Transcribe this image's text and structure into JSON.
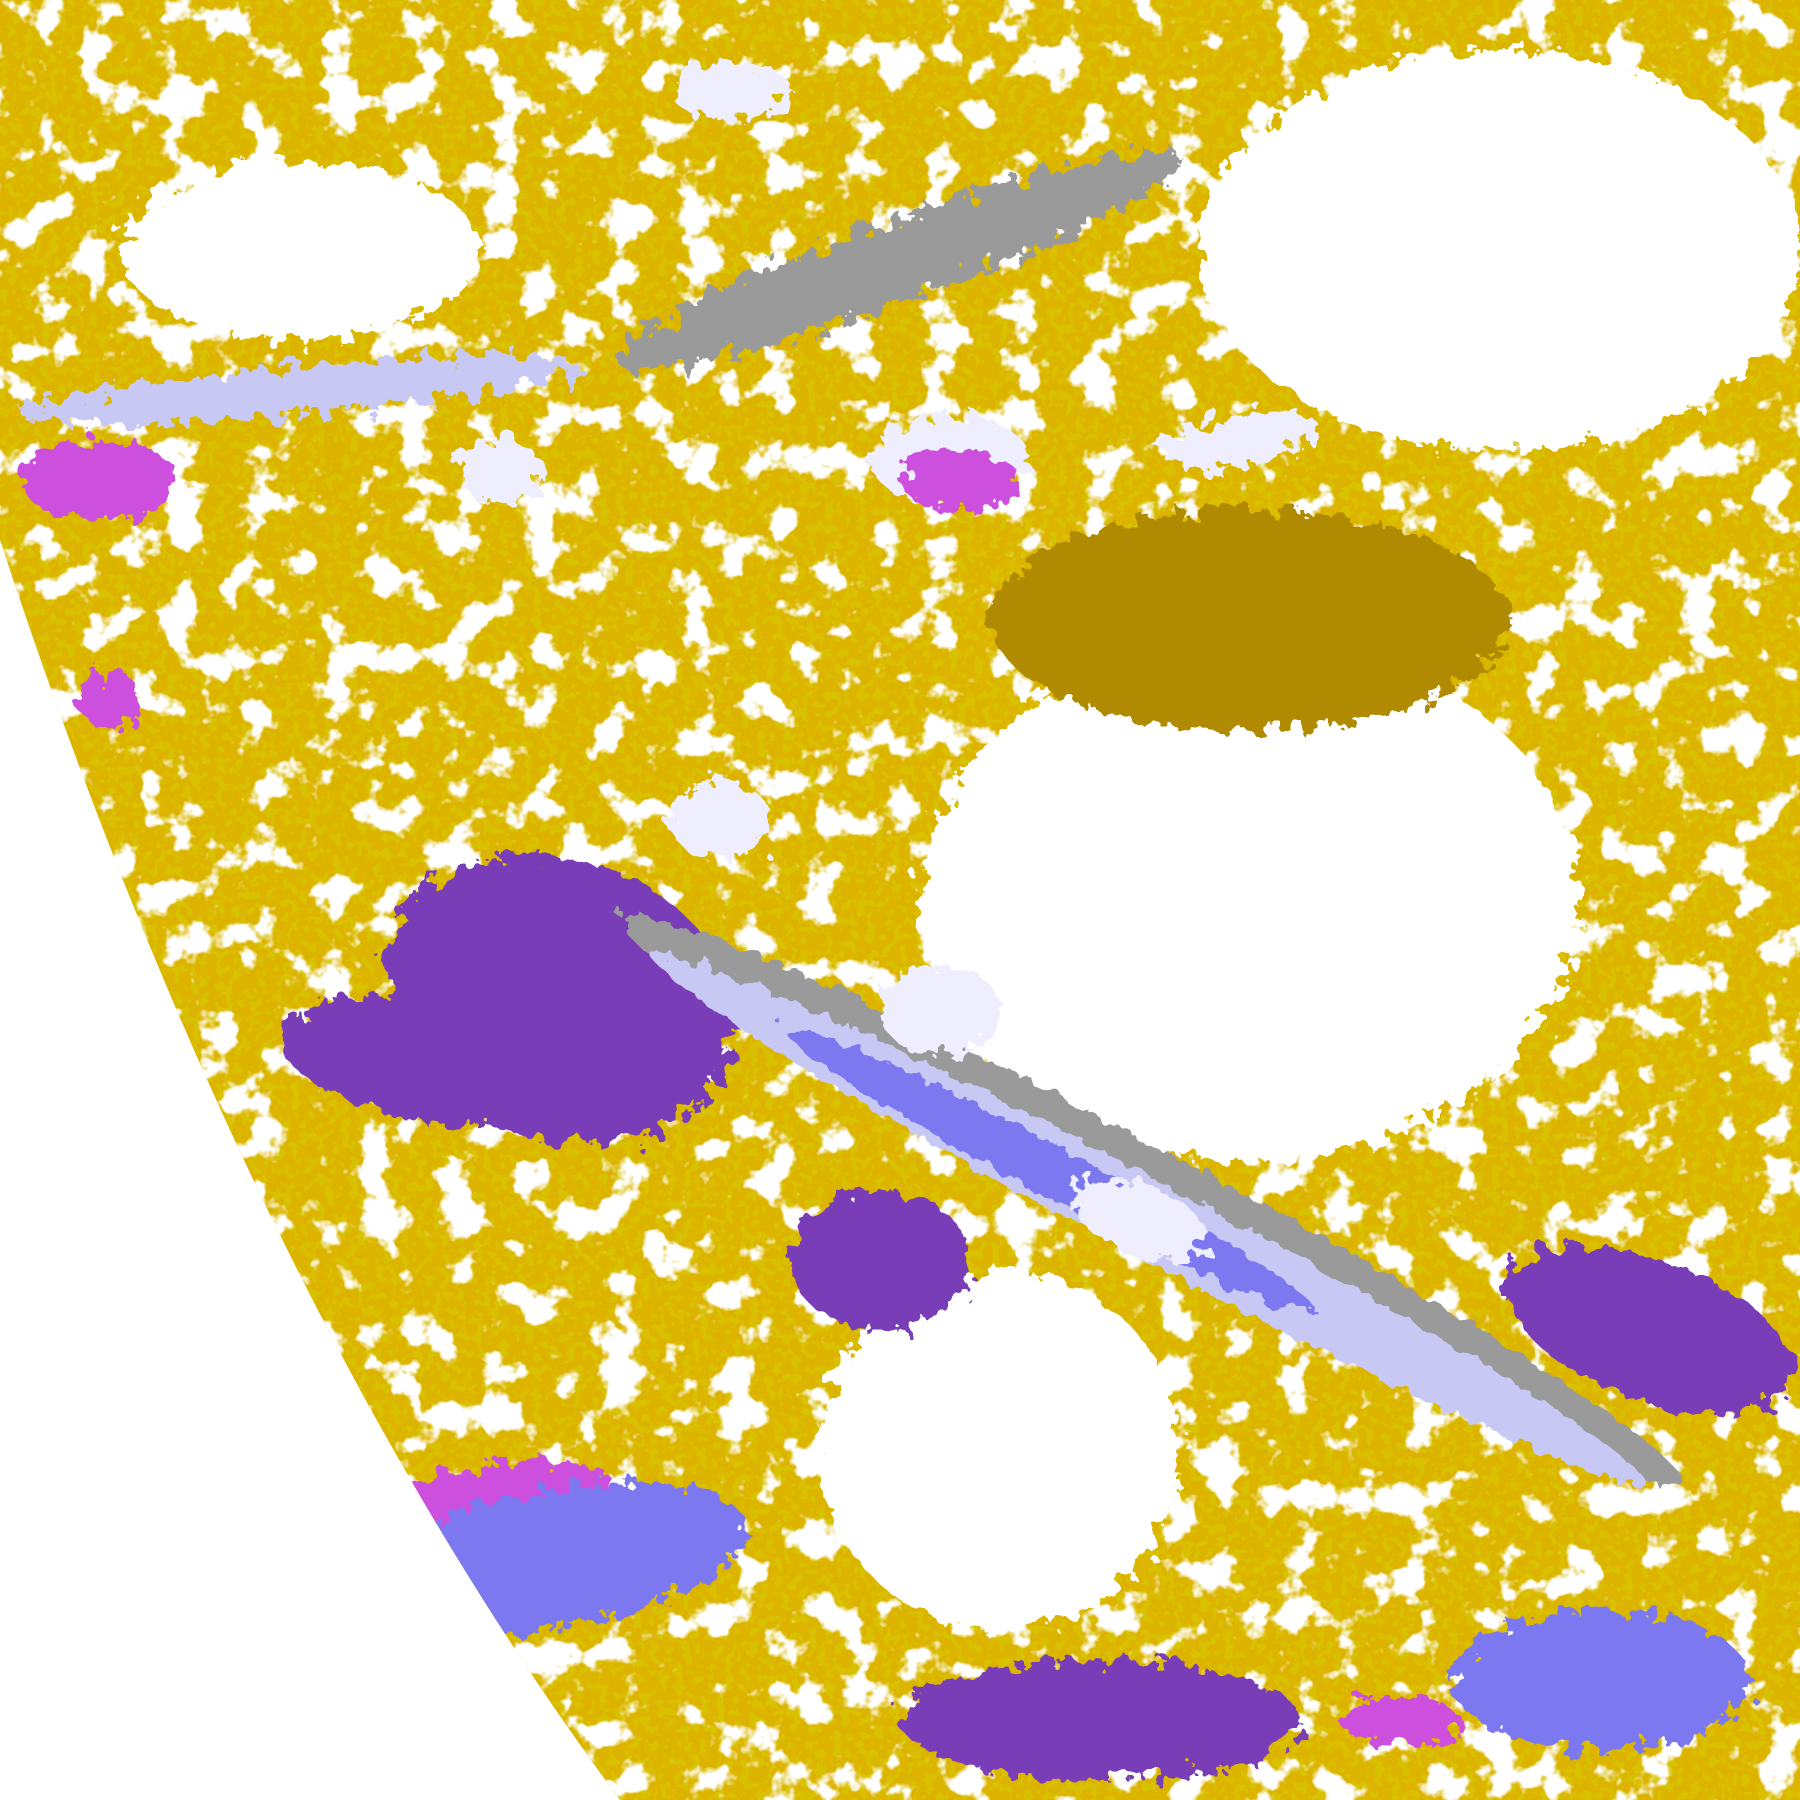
{
  "image": {
    "kind": "satellite cloud-type classification map",
    "background": "#ffffff",
    "palette": {
      "gold": "#dcb400",
      "dark_gold": "#b08a00",
      "purple": "#7a3cb8",
      "magenta": "#cc50dd",
      "periwinkle": "#7b78f0",
      "pale_lavender": "#eeeeff",
      "light_lavender": "#c8c8f5",
      "gray": "#9a9a9a"
    }
  }
}
